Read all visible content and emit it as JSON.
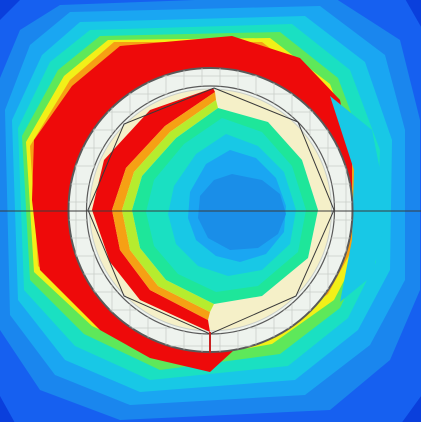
{
  "colors": {
    "background_deep_blue": "#0a3fdc",
    "blue": "#1660f0",
    "light_blue": "#1a86ee",
    "sky": "#1aa6f2",
    "cyan": "#18c8e6",
    "aqua": "#1ae0c2",
    "teal_green": "#1ee69a",
    "green": "#5ee85a",
    "yellow_green": "#b6ec2e",
    "yellow": "#f2f018",
    "orange": "#f6a014",
    "red_orange": "#f35a0e",
    "red": "#ee0a0a",
    "center_blue": "#1a8ee8",
    "ring_fill": "#eef3ee",
    "ring_grid": "#c9cec9",
    "ring_outline": "#5a5a5a",
    "inner_band": "#f5f0c8",
    "axis_line": "#3a3a3a",
    "marker_red": "#c82020"
  },
  "scene": {
    "kind": "false-color contour map with circular ring overlay",
    "has_horizontal_axis_line": true,
    "has_octagon_outline": true,
    "has_grid_on_ring": true
  }
}
